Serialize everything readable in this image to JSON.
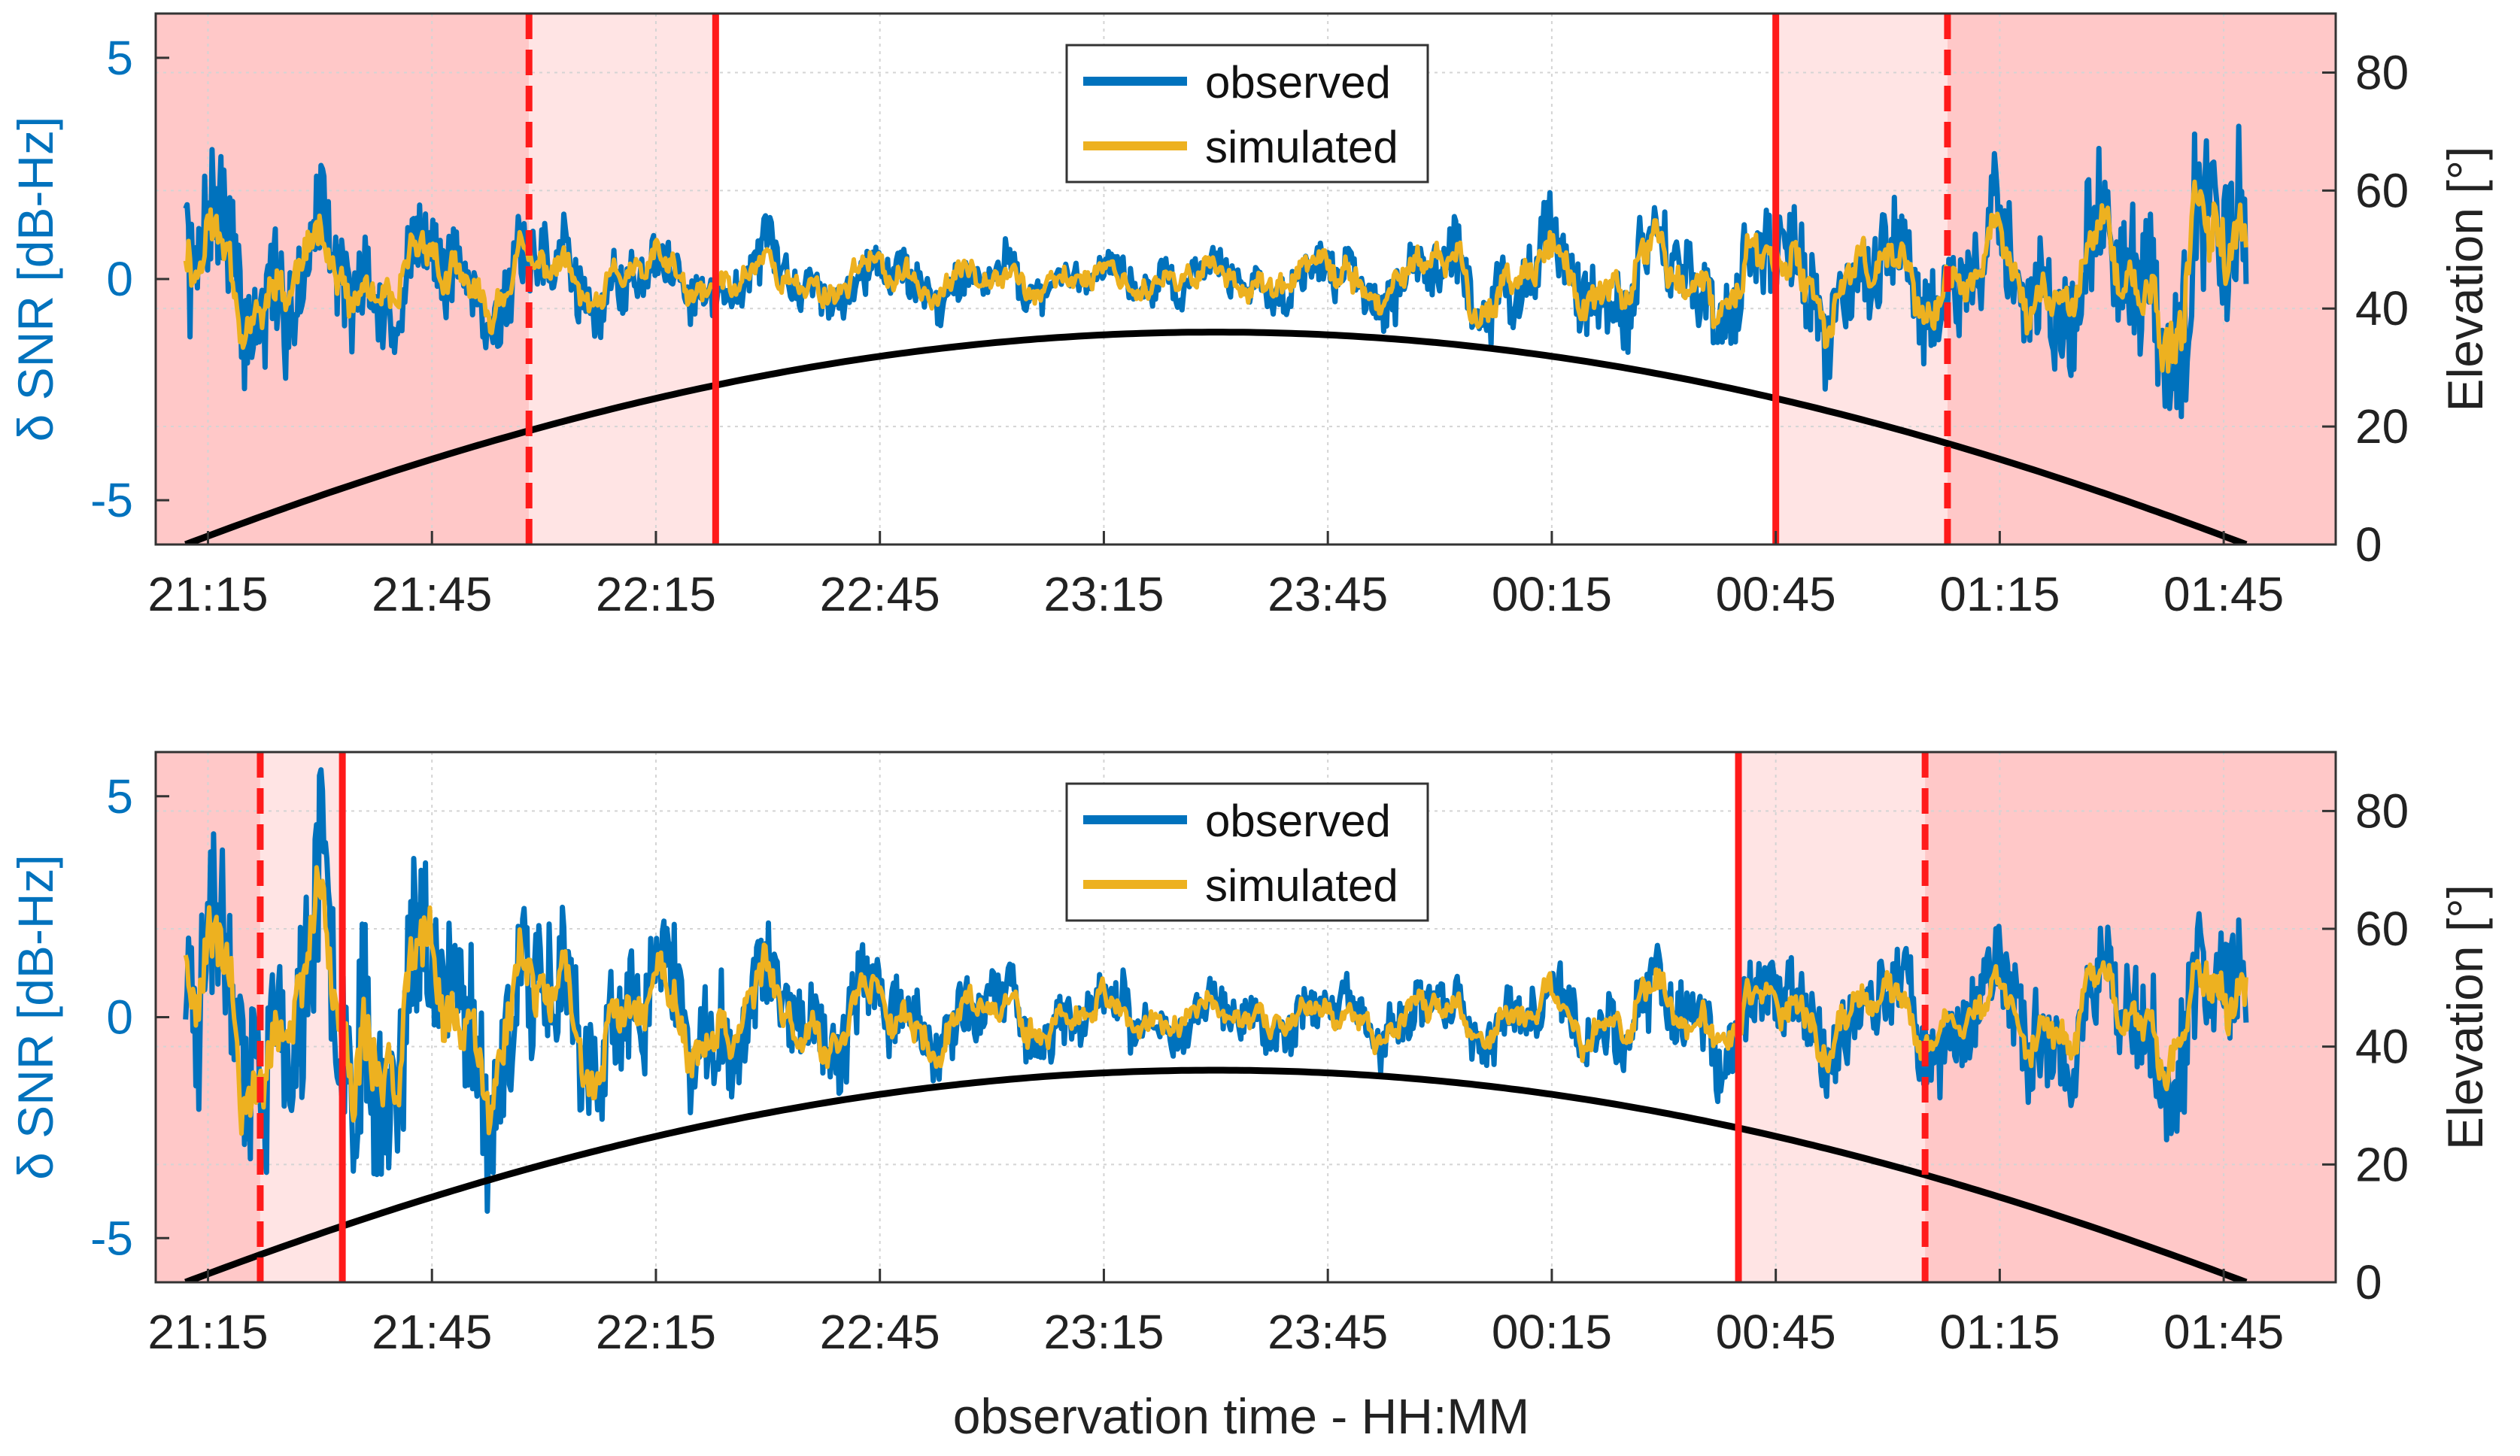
{
  "figure": {
    "xlabel": "observation time - HH:MM"
  },
  "colors": {
    "observed": "#0072BD",
    "simulated": "#EDB120",
    "elevation": "#000000",
    "left_axis": "#0072BD",
    "right_axis": "#222222",
    "marker": "#FF1A1A",
    "shade_dark": "#FFC8C8",
    "shade_light": "#FFE4E4"
  },
  "chart_data": [
    {
      "type": "line",
      "name": "top-panel",
      "xlim": [
        "21:08",
        "02:00"
      ],
      "x_ticks": [
        "21:15",
        "21:45",
        "22:15",
        "22:45",
        "23:15",
        "23:45",
        "00:15",
        "00:45",
        "01:15",
        "01:45"
      ],
      "ylabel_left": "δ SNR [dB-Hz]",
      "ylim_left": [
        -6,
        6
      ],
      "yticks_left": [
        "-5",
        "0",
        "5"
      ],
      "ylabel_right": "Elevation [°]",
      "ylim_right": [
        0,
        90
      ],
      "yticks_right": [
        "0",
        "20",
        "40",
        "60",
        "80"
      ],
      "grid": true,
      "legend": {
        "placement": "top-center",
        "entries": [
          "observed",
          "simulated"
        ]
      },
      "time_start": "21:12",
      "time_end": "01:48",
      "elevation": {
        "x": [
          "21:12",
          "21:45",
          "22:15",
          "22:45",
          "23:15",
          "23:30",
          "23:45",
          "00:15",
          "00:45",
          "01:15",
          "01:48"
        ],
        "values": [
          0,
          12,
          22,
          30,
          35,
          36,
          35,
          30,
          22,
          12,
          0
        ]
      },
      "shaded_regions": [
        {
          "from": "21:08",
          "to": "21:58",
          "shade": "dark"
        },
        {
          "from": "21:58",
          "to": "22:23",
          "shade": "light"
        },
        {
          "from": "00:45",
          "to": "01:08",
          "shade": "light"
        },
        {
          "from": "01:08",
          "to": "02:00",
          "shade": "dark"
        }
      ],
      "marker_lines": [
        {
          "x": "21:58",
          "style": "dashed"
        },
        {
          "x": "22:23",
          "style": "solid"
        },
        {
          "x": "00:45",
          "style": "solid"
        },
        {
          "x": "01:08",
          "style": "dashed"
        }
      ],
      "series": [
        {
          "name": "observed",
          "amplitude_profile": [
            2.4,
            1.6,
            1.2,
            0.9,
            0.7,
            0.6,
            0.5,
            0.6,
            1.1,
            1.3,
            1.5,
            1.5,
            2.0,
            3.6
          ],
          "noise": 0.9,
          "seed": 7
        },
        {
          "name": "simulated",
          "amplitude_profile": [
            1.9,
            1.3,
            1.0,
            0.7,
            0.6,
            0.5,
            0.4,
            0.5,
            1.0,
            1.2,
            1.2,
            1.2,
            1.5,
            3.2
          ],
          "noise": 0.3,
          "seed": 11
        }
      ]
    },
    {
      "type": "line",
      "name": "bottom-panel",
      "xlim": [
        "21:08",
        "02:00"
      ],
      "x_ticks": [
        "21:15",
        "21:45",
        "22:15",
        "22:45",
        "23:15",
        "23:45",
        "00:15",
        "00:45",
        "01:15",
        "01:45"
      ],
      "ylabel_left": "δ SNR [dB-Hz]",
      "ylim_left": [
        -6,
        6
      ],
      "yticks_left": [
        "-5",
        "0",
        "5"
      ],
      "ylabel_right": "Elevation [°]",
      "ylim_right": [
        0,
        90
      ],
      "yticks_right": [
        "0",
        "20",
        "40",
        "60",
        "80"
      ],
      "grid": true,
      "legend": {
        "placement": "top-center",
        "entries": [
          "observed",
          "simulated"
        ]
      },
      "time_start": "21:12",
      "time_end": "01:48",
      "elevation": {
        "x": [
          "21:12",
          "21:45",
          "22:15",
          "22:45",
          "23:15",
          "23:30",
          "23:45",
          "00:15",
          "00:45",
          "01:15",
          "01:48"
        ],
        "values": [
          0,
          12,
          22,
          30,
          35,
          36,
          35,
          30,
          22,
          12,
          0
        ]
      },
      "shaded_regions": [
        {
          "from": "21:08",
          "to": "21:22",
          "shade": "dark"
        },
        {
          "from": "21:22",
          "to": "21:33",
          "shade": "light"
        },
        {
          "from": "00:40",
          "to": "01:05",
          "shade": "light"
        },
        {
          "from": "01:05",
          "to": "02:00",
          "shade": "dark"
        }
      ],
      "marker_lines": [
        {
          "x": "21:22",
          "style": "dashed"
        },
        {
          "x": "21:33",
          "style": "solid"
        },
        {
          "x": "00:40",
          "style": "solid"
        },
        {
          "x": "01:05",
          "style": "dashed"
        }
      ],
      "series": [
        {
          "name": "observed",
          "amplitude_profile": [
            3.2,
            3.6,
            2.6,
            1.8,
            1.4,
            1.0,
            0.7,
            0.6,
            0.8,
            1.1,
            1.3,
            1.4,
            1.6,
            2.6
          ],
          "noise": 0.9,
          "seed": 23
        },
        {
          "name": "simulated",
          "amplitude_profile": [
            2.8,
            3.3,
            2.3,
            1.5,
            1.2,
            0.8,
            0.5,
            0.5,
            0.7,
            0.9,
            1.0,
            1.1,
            1.2,
            2.0
          ],
          "noise": 0.3,
          "seed": 29
        }
      ]
    }
  ]
}
